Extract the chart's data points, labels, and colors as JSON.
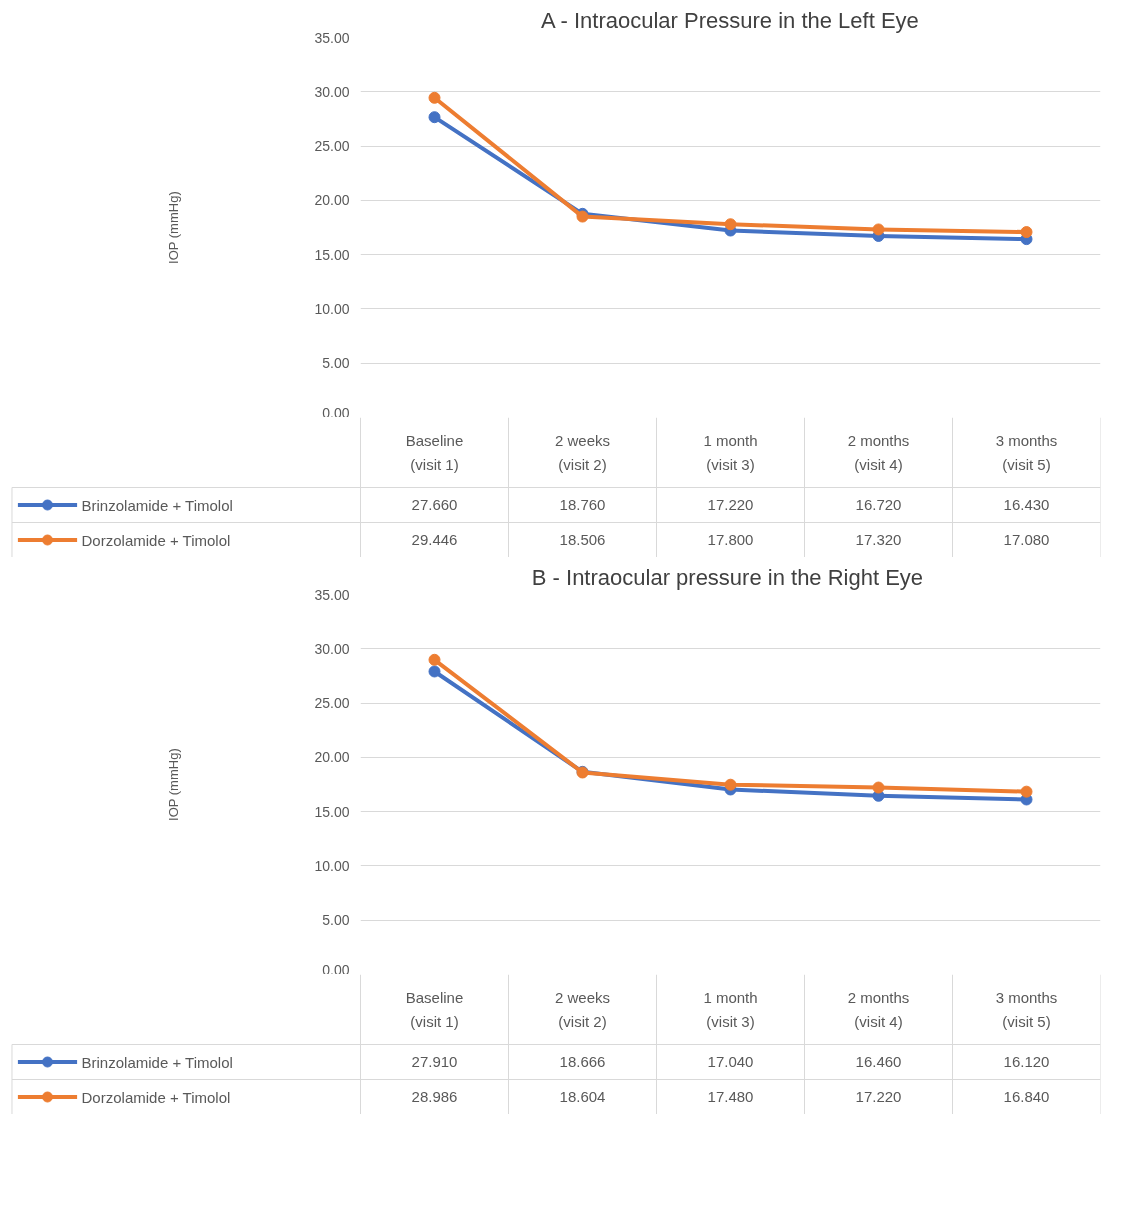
{
  "chart_data": [
    {
      "type": "line",
      "title": "A - Intraocular Pressure in the Left Eye",
      "ylabel": "IOP (mmHg)",
      "categories": [
        "Baseline\n(visit 1)",
        "2 weeks\n(visit 2)",
        "1 month\n(visit 3)",
        "2 months\n(visit 4)",
        "3 months\n(visit 5)"
      ],
      "series": [
        {
          "name": "Brinzolamide + Timolol",
          "color": "#4472c4",
          "values": [
            27.66,
            18.76,
            17.22,
            16.72,
            16.43
          ],
          "value_labels": [
            "27.660",
            "18.760",
            "17.220",
            "16.720",
            "16.430"
          ]
        },
        {
          "name": "Dorzolamide + Timolol",
          "color": "#ed7d31",
          "values": [
            29.446,
            18.506,
            17.8,
            17.32,
            17.08
          ],
          "value_labels": [
            "29.446",
            "18.506",
            "17.800",
            "17.320",
            "17.080"
          ]
        }
      ],
      "ylim": [
        0,
        35
      ],
      "yticks": [
        {
          "value": 0,
          "label": "0.00"
        },
        {
          "value": 5,
          "label": "5.00"
        },
        {
          "value": 10,
          "label": "10.00"
        },
        {
          "value": 15,
          "label": "15.00"
        },
        {
          "value": 20,
          "label": "20.00"
        },
        {
          "value": 25,
          "label": "25.00"
        },
        {
          "value": 30,
          "label": "30.00"
        },
        {
          "value": 35,
          "label": "35.00"
        }
      ],
      "grid": "y",
      "marker": "circle",
      "line_style": "solid",
      "legend": "bottom"
    },
    {
      "type": "line",
      "title": "B - Intraocular pressure  in the Right Eye",
      "ylabel": "IOP (mmHg)",
      "categories": [
        "Baseline\n(visit 1)",
        "2 weeks\n(visit 2)",
        "1 month\n(visit 3)",
        "2 months\n(visit 4)",
        "3 months\n(visit 5)"
      ],
      "series": [
        {
          "name": "Brinzolamide + Timolol",
          "color": "#4472c4",
          "values": [
            27.91,
            18.666,
            17.04,
            16.46,
            16.12
          ],
          "value_labels": [
            "27.910",
            "18.666",
            "17.040",
            "16.460",
            "16.120"
          ]
        },
        {
          "name": "Dorzolamide + Timolol",
          "color": "#ed7d31",
          "values": [
            28.986,
            18.604,
            17.48,
            17.22,
            16.84
          ],
          "value_labels": [
            "28.986",
            "18.604",
            "17.480",
            "17.220",
            "16.840"
          ]
        }
      ],
      "ylim": [
        0,
        35
      ],
      "yticks": [
        {
          "value": 0,
          "label": "0.00"
        },
        {
          "value": 5,
          "label": "5.00"
        },
        {
          "value": 10,
          "label": "10.00"
        },
        {
          "value": 15,
          "label": "15.00"
        },
        {
          "value": 20,
          "label": "20.00"
        },
        {
          "value": 25,
          "label": "25.00"
        },
        {
          "value": 30,
          "label": "30.00"
        },
        {
          "value": 35,
          "label": "35.00"
        }
      ],
      "grid": "y",
      "marker": "circle",
      "line_style": "solid",
      "legend": "bottom"
    }
  ]
}
